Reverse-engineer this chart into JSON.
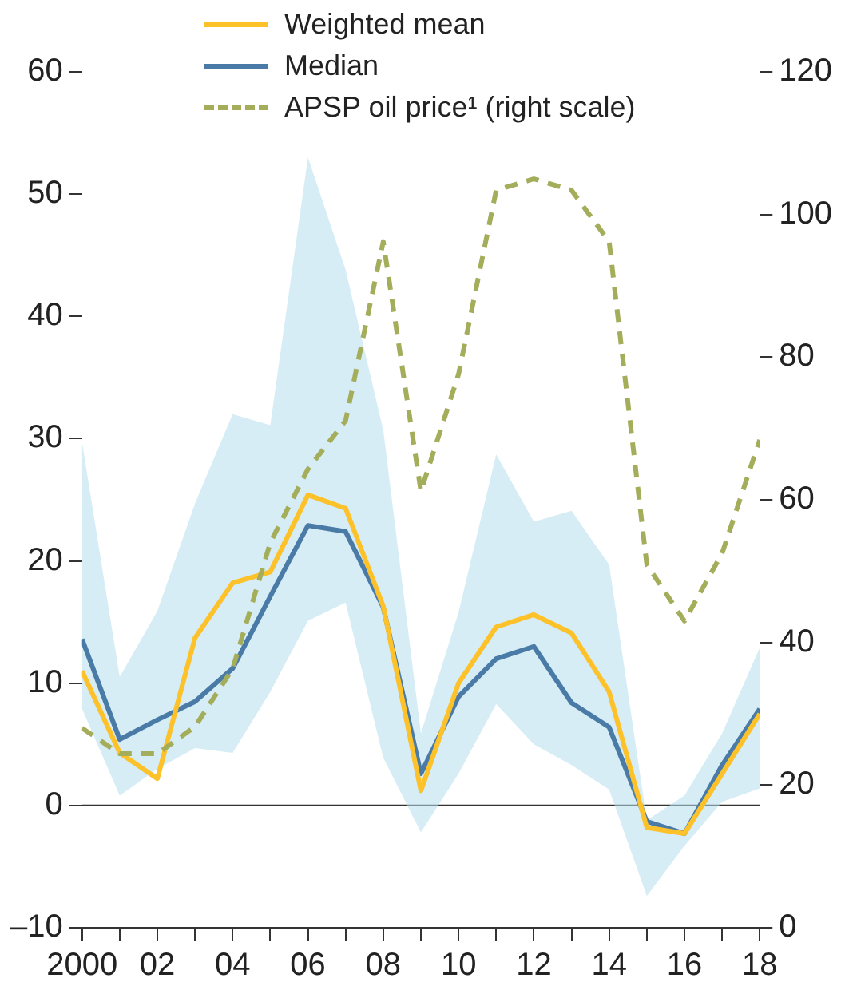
{
  "chart_data": {
    "type": "line",
    "legend": "top",
    "x": [
      2000,
      2001,
      2002,
      2003,
      2004,
      2005,
      2006,
      2007,
      2008,
      2009,
      2010,
      2011,
      2012,
      2013,
      2014,
      2015,
      2016,
      2017,
      2018
    ],
    "xlim": [
      2000,
      2018
    ],
    "xticks": [
      2000,
      {
        "value": 2001,
        "label": null
      },
      {
        "value": 2002,
        "label": "02"
      },
      {
        "value": 2003,
        "label": null
      },
      {
        "value": 2004,
        "label": "04"
      },
      {
        "value": 2005,
        "label": null
      },
      {
        "value": 2006,
        "label": "06"
      },
      {
        "value": 2007,
        "label": null
      },
      {
        "value": 2008,
        "label": "08"
      },
      {
        "value": 2009,
        "label": null
      },
      {
        "value": 2010,
        "label": "10"
      },
      {
        "value": 2011,
        "label": null
      },
      {
        "value": 2012,
        "label": "12"
      },
      {
        "value": 2013,
        "label": null
      },
      {
        "value": 2014,
        "label": "14"
      },
      {
        "value": 2015,
        "label": null
      },
      {
        "value": 2016,
        "label": "16"
      },
      {
        "value": 2017,
        "label": null
      },
      {
        "value": 2018,
        "label": "18"
      }
    ],
    "ylim": [
      -10,
      60
    ],
    "yticks": [
      {
        "value": -10,
        "label": "–10"
      },
      0,
      10,
      20,
      30,
      40,
      50,
      60
    ],
    "y2lim": [
      0,
      120
    ],
    "y2ticks": [
      0,
      20,
      40,
      60,
      80,
      100,
      120
    ],
    "ref_lines": [
      {
        "axis": "y",
        "value": 0,
        "color": "#333333"
      }
    ],
    "series": [
      {
        "name": "Weighted mean",
        "color": "#fdc12a",
        "values": [
          11.0,
          4.3,
          2.2,
          13.7,
          18.2,
          19.1,
          25.4,
          24.3,
          16.3,
          1.2,
          10.0,
          14.6,
          15.6,
          14.1,
          9.3,
          -1.8,
          -2.3,
          2.6,
          7.5
        ]
      },
      {
        "name": "Median",
        "color": "#4a7ba7",
        "values": [
          13.6,
          5.4,
          7.0,
          8.5,
          11.2,
          17.1,
          22.9,
          22.4,
          16.2,
          2.6,
          8.9,
          12.0,
          13.0,
          8.4,
          6.4,
          -1.3,
          -2.3,
          3.3,
          7.9
        ],
        "lower": [
          7.9,
          0.8,
          3.0,
          4.7,
          4.3,
          9.3,
          15.1,
          16.6,
          3.9,
          -2.2,
          2.6,
          8.3,
          5.0,
          3.3,
          1.3,
          -7.4,
          -3.3,
          0.3,
          1.4
        ],
        "upper": [
          29.7,
          10.5,
          15.9,
          24.7,
          32.0,
          31.1,
          53.0,
          43.8,
          30.7,
          5.9,
          15.8,
          28.7,
          23.2,
          24.1,
          19.7,
          -1.2,
          0.8,
          5.9,
          12.9
        ]
      },
      {
        "name": "APSP oil price¹ (right scale)",
        "color": "#a4ad5a",
        "line_style": "dashed",
        "axis": "y2",
        "values": [
          28.0,
          24.4,
          24.4,
          28.2,
          36.3,
          54.0,
          64.3,
          71.1,
          96.2,
          61.2,
          77.6,
          103.4,
          105.0,
          103.4,
          96.2,
          50.9,
          43.0,
          52.5,
          68.4
        ]
      }
    ]
  }
}
